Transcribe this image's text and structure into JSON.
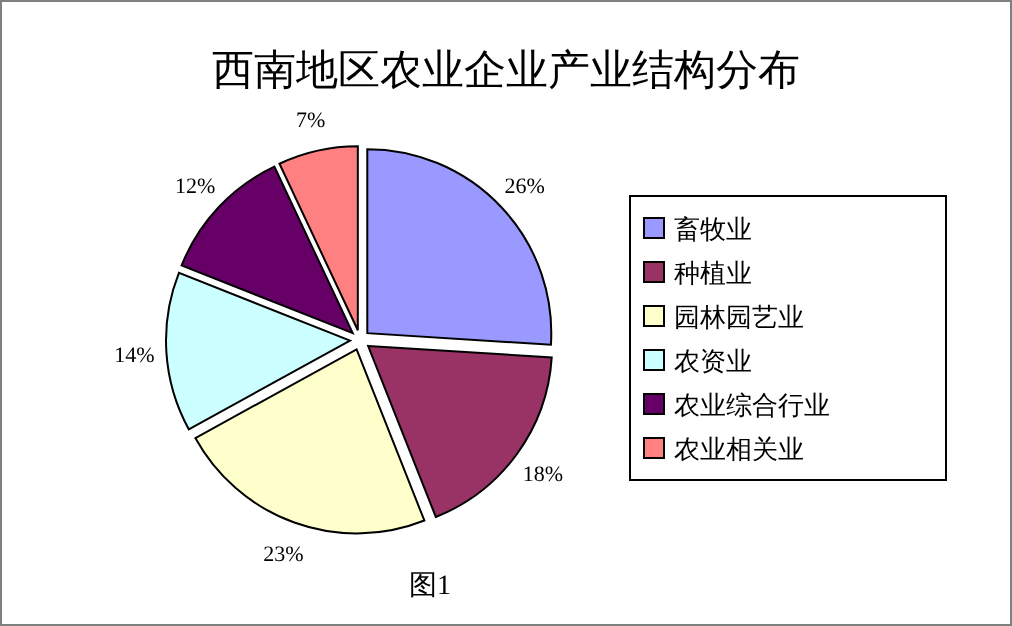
{
  "chart_data": {
    "type": "pie",
    "title": "西南地区农业企业产业结构分布",
    "categories": [
      "畜牧业",
      "种植业",
      "园林园艺业",
      "农资业",
      "农业综合行业",
      "农业相关业"
    ],
    "values": [
      26,
      18,
      23,
      14,
      12,
      7
    ],
    "value_labels": [
      "26%",
      "18%",
      "23%",
      "14%",
      "12%",
      "7%"
    ],
    "colors": [
      "#9999ff",
      "#993366",
      "#ffffcc",
      "#ccffff",
      "#660066",
      "#ff8080"
    ],
    "legend": "right",
    "annotations": [
      "图1"
    ]
  }
}
